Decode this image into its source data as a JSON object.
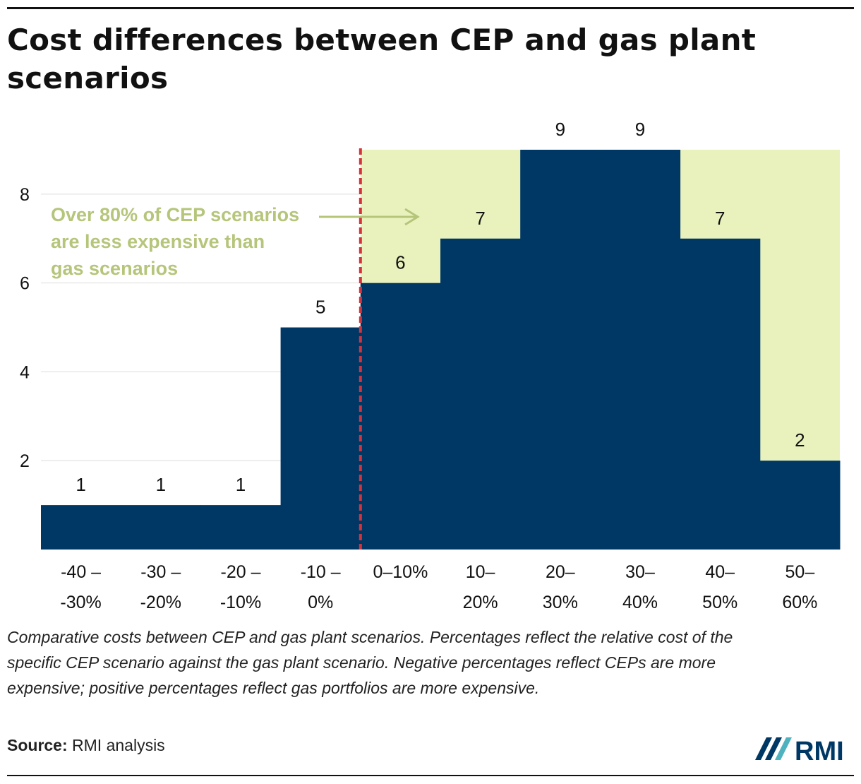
{
  "title": "Cost differences between CEP and gas plant scenarios",
  "caption": "Comparative costs between CEP and gas plant scenarios. Percentages reflect the relative cost of the specific CEP scenario against the gas plant scenario. Negative percentages reflect CEPs are more expensive; positive percentages reflect gas portfolios are more expensive.",
  "source": {
    "label": "Source:",
    "text": "RMI analysis"
  },
  "logo": {
    "icon": "rmi-logo-icon",
    "text": "RMI",
    "colors": {
      "navy": "#003865",
      "teal": "#4fb3bf"
    }
  },
  "colors": {
    "bar": "#003865",
    "highlight": "#e9f2bd",
    "divider": "#d6323c",
    "annotation": "#b5c57a",
    "grid": "#dddddd"
  },
  "chart_data": {
    "type": "bar",
    "categories": [
      [
        "-40 –",
        "-30%"
      ],
      [
        "-30 –",
        "-20%"
      ],
      [
        "-20 –",
        "-10%"
      ],
      [
        "-10 –",
        "0%"
      ],
      [
        "0–10%",
        ""
      ],
      [
        "10–",
        "20%"
      ],
      [
        "20–",
        "30%"
      ],
      [
        "30–",
        "40%"
      ],
      [
        "40–",
        "50%"
      ],
      [
        "50–",
        "60%"
      ]
    ],
    "values": [
      1,
      1,
      1,
      5,
      6,
      7,
      9,
      9,
      7,
      2
    ],
    "yticks": [
      2,
      4,
      6,
      8
    ],
    "ylim": [
      0,
      9
    ],
    "grid": true,
    "highlight": {
      "from_index": 4,
      "to_value": 9
    },
    "annotation": {
      "lines": [
        "Over 80% of CEP scenarios",
        "are less expensive than",
        "gas scenarios"
      ]
    }
  }
}
